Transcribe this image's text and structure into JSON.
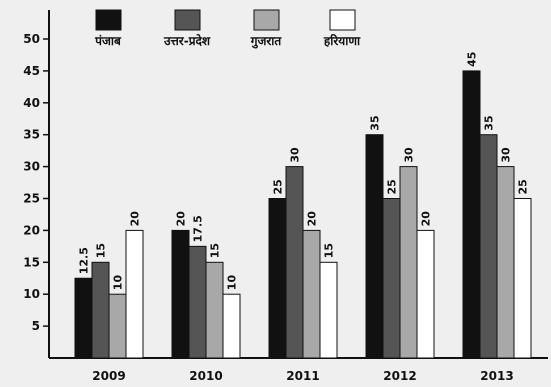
{
  "chart_data": {
    "type": "bar",
    "categories": [
      "2009",
      "2010",
      "2011",
      "2012",
      "2013"
    ],
    "series": [
      {
        "name": "पंजाब",
        "values": [
          12.5,
          20,
          25,
          35,
          45
        ],
        "color": "#111111"
      },
      {
        "name": "उत्तर-प्रदेश",
        "values": [
          15,
          17.5,
          30,
          25,
          35
        ],
        "color": "#555555"
      },
      {
        "name": "गुजरात",
        "values": [
          10,
          15,
          20,
          30,
          30
        ],
        "color": "#a8a8a8"
      },
      {
        "name": "हरियाणा",
        "values": [
          20,
          10,
          15,
          20,
          25
        ],
        "color": "#ffffff"
      }
    ],
    "value_labels": [
      [
        "12.5",
        "15",
        "10",
        "20"
      ],
      [
        "20",
        "17.5",
        "15",
        "10"
      ],
      [
        "25",
        "30",
        "20",
        "15"
      ],
      [
        "35",
        "25",
        "30",
        "20"
      ],
      [
        "45",
        "35",
        "30",
        "25"
      ]
    ],
    "title": "",
    "xlabel": "",
    "ylabel": "",
    "ylim": [
      0,
      50
    ],
    "yticks": [
      5,
      10,
      15,
      20,
      25,
      30,
      35,
      40,
      45,
      50
    ],
    "legend_position": "top",
    "grid": false
  }
}
